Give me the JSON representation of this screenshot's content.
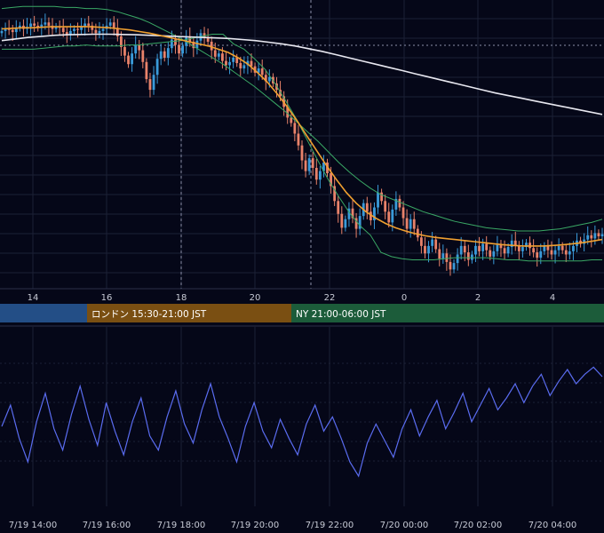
{
  "chart_data": [
    {
      "type": "candlestick",
      "x_ticks_top": [
        "14",
        "16",
        "18",
        "20",
        "22",
        "0",
        "2",
        "4"
      ],
      "x_ticks_bottom": [
        "7/19 14:00",
        "7/19 16:00",
        "7/19 18:00",
        "7/19 20:00",
        "7/19 22:00",
        "7/20 00:00",
        "7/20 02:00",
        "7/20 04:00"
      ],
      "candles_close": [
        97.1,
        97.3,
        97.2,
        97.0,
        97.4,
        97.6,
        97.3,
        97.5,
        97.8,
        97.6,
        97.4,
        97.7,
        97.9,
        97.6,
        97.3,
        97.5,
        97.4,
        97.0,
        96.8,
        97.1,
        97.3,
        97.2,
        97.5,
        97.8,
        97.6,
        97.2,
        96.9,
        97.1,
        97.3,
        97.6,
        97.9,
        97.4,
        96.6,
        95.6,
        94.8,
        94.0,
        95.0,
        95.8,
        95.3,
        94.2,
        92.6,
        91.6,
        93.0,
        94.5,
        95.2,
        94.6,
        95.5,
        96.3,
        95.8,
        95.0,
        95.7,
        96.6,
        96.1,
        95.5,
        96.2,
        96.9,
        96.5,
        96.1,
        95.3,
        94.7,
        95.0,
        94.3,
        93.9,
        94.2,
        94.6,
        94.1,
        93.6,
        93.9,
        94.3,
        93.8,
        93.2,
        93.6,
        93.0,
        92.4,
        92.8,
        92.2,
        91.6,
        91.0,
        90.0,
        89.0,
        88.5,
        87.5,
        86.4,
        85.0,
        84.0,
        85.2,
        84.3,
        83.2,
        84.0,
        84.8,
        83.8,
        82.6,
        81.2,
        80.0,
        78.7,
        79.5,
        80.5,
        79.6,
        78.6,
        79.8,
        81.0,
        80.2,
        79.4,
        80.6,
        82.0,
        81.2,
        80.2,
        79.2,
        80.4,
        81.4,
        80.6,
        79.6,
        78.6,
        79.5,
        78.6,
        77.8,
        77.0,
        76.3,
        77.0,
        77.6,
        76.7,
        75.8,
        76.3,
        75.5,
        74.8,
        75.4,
        76.2,
        77.0,
        76.4,
        75.7,
        76.2,
        77.0,
        76.5,
        77.2,
        76.6,
        76.0,
        76.5,
        77.1,
        76.8,
        76.3,
        76.9,
        77.5,
        77.0,
        76.5,
        76.9,
        77.3,
        76.8,
        76.4,
        75.9,
        76.5,
        77.0,
        76.6,
        76.2,
        76.6,
        77.0,
        76.6,
        76.2,
        76.5,
        77.0,
        77.5,
        77.2,
        77.6,
        78.0,
        77.7,
        78.2,
        77.9,
        78.1
      ],
      "ema_short": [
        97.3,
        97.35,
        97.4,
        97.4,
        97.45,
        97.5,
        97.5,
        97.5,
        97.52,
        97.5,
        97.45,
        97.4,
        97.3,
        97.2,
        97.05,
        96.9,
        96.7,
        96.5,
        96.3,
        96.1,
        95.9,
        95.7,
        95.4,
        95.1,
        94.6,
        94.0,
        93.2,
        92.3,
        91.2,
        90.0,
        88.7,
        87.3,
        85.9,
        84.5,
        83.2,
        82.0,
        81.0,
        80.2,
        79.6,
        79.1,
        78.7,
        78.4,
        78.15,
        77.95,
        77.8,
        77.7,
        77.6,
        77.5,
        77.4,
        77.3,
        77.2,
        77.1,
        77.05,
        77.0,
        77.0,
        77.0,
        77.05,
        77.1,
        77.2,
        77.3,
        77.45,
        77.6
      ],
      "ema_long": [
        96.2,
        96.35,
        96.5,
        96.6,
        96.7,
        96.75,
        96.78,
        96.8,
        96.8,
        96.78,
        96.75,
        96.7,
        96.65,
        96.6,
        96.55,
        96.5,
        96.45,
        96.4,
        96.3,
        96.2,
        96.05,
        95.9,
        95.7,
        95.45,
        95.2,
        94.9,
        94.6,
        94.3,
        94.0,
        93.7,
        93.4,
        93.1,
        92.8,
        92.5,
        92.2,
        91.9,
        91.6,
        91.3,
        91.05,
        90.8,
        90.55,
        90.3,
        90.05,
        89.8,
        89.55,
        89.3
      ],
      "rsi": [
        45,
        54,
        40,
        30,
        47,
        59,
        44,
        35,
        50,
        62,
        48,
        37,
        55,
        43,
        33,
        47,
        57,
        41,
        35,
        49,
        60,
        46,
        38,
        52,
        63,
        49,
        40,
        30,
        45,
        55,
        43,
        36,
        48,
        40,
        33,
        46,
        54,
        43,
        49,
        40,
        30,
        24,
        38,
        46,
        39,
        32,
        44,
        52,
        41,
        49,
        56,
        44,
        51,
        59,
        47,
        54,
        61,
        52,
        57,
        63,
        55,
        62,
        67,
        58,
        64,
        69,
        63,
        67,
        70,
        66
      ],
      "bb_upper": [
        99.2,
        99.3,
        99.4,
        99.4,
        99.4,
        99.4,
        99.3,
        99.3,
        99.2,
        99.2,
        99.1,
        98.9,
        98.6,
        98.3,
        97.9,
        97.4,
        96.9,
        96.4,
        95.8,
        95.2,
        94.6,
        94.0,
        93.3,
        92.6,
        91.9,
        91.1,
        90.3,
        89.5,
        88.6,
        87.7,
        86.8,
        85.8,
        84.8,
        83.9,
        83.1,
        82.4,
        81.8,
        81.4,
        81.0,
        80.6,
        80.2,
        79.9,
        79.6,
        79.3,
        79.1,
        78.9,
        78.7,
        78.6,
        78.5,
        78.4,
        78.4,
        78.4,
        78.5,
        78.6,
        78.8,
        79.0,
        79.2,
        79.5
      ]
    }
  ],
  "sessions": [
    {
      "label": "",
      "color": "#234e86"
    },
    {
      "label": "ロンドン 15:30-21:00 JST",
      "color": "#7a4f12"
    },
    {
      "label": "NY 21:00-06:00 JST",
      "color": "#1c5c3a"
    }
  ],
  "colors": {
    "background": "#050718",
    "grid": "#1c2036",
    "candle_up": "#3a9ad9",
    "candle_down": "#e8826a",
    "ema_short": "#f0a030",
    "ema_long": "#e8e8f0",
    "bollinger": "#3aa865",
    "rsi": "#5a6cf0",
    "crosshair": "#8a8fa8"
  }
}
